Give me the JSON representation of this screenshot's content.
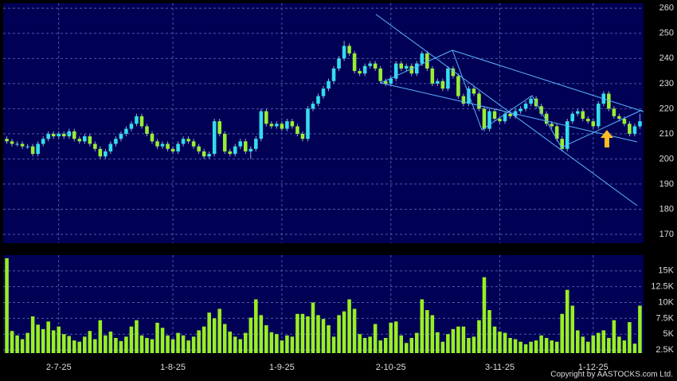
{
  "chart_data": [
    {
      "type": "candlestick",
      "xlim": [
        -0.7,
        122.7
      ],
      "xticks": [
        {
          "value": 10,
          "label": "2-7-25"
        },
        {
          "value": 32,
          "label": "1-8-25"
        },
        {
          "value": 53,
          "label": "1-9-25"
        },
        {
          "value": 74,
          "label": "2-10-25"
        },
        {
          "value": 95,
          "label": "3-11-25"
        },
        {
          "value": 113,
          "label": "1-12-25"
        }
      ],
      "ylim": [
        166.5,
        262
      ],
      "yticks": [
        170,
        180,
        190,
        200,
        210,
        220,
        230,
        240,
        250,
        260
      ],
      "grid": true,
      "up_color": "#33ddee",
      "down_color": "#99ee33",
      "candles": [
        [
          208,
          209,
          206,
          207
        ],
        [
          207,
          208,
          205,
          206
        ],
        [
          206,
          207,
          205,
          206
        ],
        [
          206,
          207,
          204,
          205
        ],
        [
          205,
          206,
          204,
          205
        ],
        [
          205,
          206,
          201,
          202
        ],
        [
          202,
          207,
          201,
          206
        ],
        [
          206,
          209,
          205,
          208
        ],
        [
          208,
          211,
          207,
          210
        ],
        [
          210,
          211,
          208,
          209
        ],
        [
          209,
          211,
          208,
          210
        ],
        [
          210,
          211,
          208,
          209
        ],
        [
          209,
          212,
          208,
          211
        ],
        [
          211,
          212,
          207,
          208
        ],
        [
          208,
          209,
          206,
          207
        ],
        [
          207,
          210,
          206,
          209
        ],
        [
          209,
          210,
          205,
          206
        ],
        [
          206,
          207,
          203,
          204
        ],
        [
          204,
          205,
          200,
          201
        ],
        [
          201,
          204,
          200,
          203
        ],
        [
          203,
          207,
          202,
          206
        ],
        [
          206,
          209,
          205,
          208
        ],
        [
          208,
          211,
          207,
          210
        ],
        [
          210,
          213,
          209,
          212
        ],
        [
          212,
          215,
          211,
          214
        ],
        [
          214,
          218,
          213,
          217
        ],
        [
          217,
          218,
          212,
          213
        ],
        [
          213,
          214,
          209,
          210
        ],
        [
          210,
          211,
          206,
          207
        ],
        [
          207,
          208,
          204,
          205
        ],
        [
          205,
          207,
          204,
          206
        ],
        [
          206,
          207,
          203,
          204
        ],
        [
          204,
          205,
          202,
          203
        ],
        [
          203,
          207,
          202,
          206
        ],
        [
          206,
          209,
          205,
          208
        ],
        [
          208,
          209,
          206,
          207
        ],
        [
          207,
          208,
          204,
          205
        ],
        [
          205,
          206,
          202,
          203
        ],
        [
          203,
          204,
          200,
          201
        ],
        [
          201,
          203,
          200,
          202
        ],
        [
          202,
          216,
          201,
          215
        ],
        [
          215,
          216,
          209,
          210
        ],
        [
          210,
          211,
          202,
          203
        ],
        [
          203,
          204,
          201,
          202
        ],
        [
          202,
          206,
          201,
          205
        ],
        [
          205,
          208,
          204,
          207
        ],
        [
          207,
          208,
          202,
          203
        ],
        [
          203,
          205,
          200,
          204
        ],
        [
          204,
          209,
          203,
          208
        ],
        [
          208,
          220,
          207,
          219
        ],
        [
          219,
          220,
          213,
          214
        ],
        [
          214,
          215,
          212,
          213
        ],
        [
          213,
          215,
          212,
          214
        ],
        [
          214,
          215,
          211,
          212
        ],
        [
          212,
          216,
          211,
          215
        ],
        [
          215,
          216,
          212,
          213
        ],
        [
          213,
          214,
          209,
          210
        ],
        [
          210,
          211,
          207,
          208
        ],
        [
          208,
          221,
          207,
          220
        ],
        [
          220,
          223,
          219,
          222
        ],
        [
          222,
          226,
          221,
          225
        ],
        [
          225,
          229,
          224,
          228
        ],
        [
          228,
          232,
          227,
          231
        ],
        [
          231,
          237,
          230,
          236
        ],
        [
          236,
          241,
          235,
          240
        ],
        [
          240,
          247,
          239,
          245
        ],
        [
          245,
          246,
          241,
          242
        ],
        [
          242,
          243,
          234,
          235
        ],
        [
          235,
          236,
          233,
          234
        ],
        [
          234,
          238,
          233,
          237
        ],
        [
          237,
          239,
          236,
          238
        ],
        [
          238,
          239,
          235,
          236
        ],
        [
          236,
          237,
          230,
          231
        ],
        [
          231,
          232,
          229,
          230
        ],
        [
          230,
          233,
          229,
          232
        ],
        [
          232,
          239,
          231,
          238
        ],
        [
          238,
          239,
          235,
          236
        ],
        [
          236,
          238,
          235,
          237
        ],
        [
          237,
          238,
          233,
          234
        ],
        [
          234,
          239,
          233,
          238
        ],
        [
          238,
          243,
          237,
          242
        ],
        [
          242,
          243,
          235,
          236
        ],
        [
          236,
          237,
          229,
          230
        ],
        [
          230,
          232,
          229,
          231
        ],
        [
          231,
          232,
          227,
          228
        ],
        [
          228,
          237,
          227,
          236
        ],
        [
          236,
          237,
          232,
          233
        ],
        [
          233,
          234,
          224,
          225
        ],
        [
          225,
          226,
          221,
          222
        ],
        [
          222,
          229,
          221,
          228
        ],
        [
          228,
          229,
          225,
          226
        ],
        [
          226,
          227,
          219,
          220
        ],
        [
          220,
          221,
          211,
          212
        ],
        [
          212,
          220,
          211,
          219
        ],
        [
          219,
          220,
          215,
          216
        ],
        [
          216,
          217,
          214,
          215
        ],
        [
          215,
          219,
          214,
          218
        ],
        [
          218,
          219,
          216,
          217
        ],
        [
          217,
          220,
          216,
          219
        ],
        [
          219,
          221,
          218,
          220
        ],
        [
          220,
          223,
          219,
          222
        ],
        [
          222,
          225,
          221,
          224
        ],
        [
          224,
          225,
          220,
          221
        ],
        [
          221,
          222,
          217,
          218
        ],
        [
          218,
          219,
          213,
          214
        ],
        [
          214,
          215,
          212,
          213
        ],
        [
          213,
          214,
          207,
          208
        ],
        [
          208,
          209,
          203,
          204
        ],
        [
          204,
          216,
          203,
          215
        ],
        [
          215,
          219,
          214,
          218
        ],
        [
          218,
          220,
          217,
          219
        ],
        [
          219,
          220,
          215,
          216
        ],
        [
          216,
          217,
          214,
          215
        ],
        [
          215,
          216,
          212,
          213
        ],
        [
          213,
          223,
          212,
          222
        ],
        [
          222,
          227,
          221,
          226
        ],
        [
          226,
          227,
          219,
          220
        ],
        [
          220,
          221,
          216,
          217
        ],
        [
          217,
          218,
          215,
          216
        ],
        [
          216,
          217,
          213,
          214
        ],
        [
          214,
          215,
          209,
          210
        ],
        [
          210,
          214,
          209,
          213
        ],
        [
          213,
          218,
          212,
          215
        ]
      ]
    },
    {
      "type": "bar",
      "color": "#99ee22",
      "ylim": [
        2000,
        17500
      ],
      "yticks": [
        {
          "value": 2500,
          "label": "2.5K"
        },
        {
          "value": 5000,
          "label": "5K"
        },
        {
          "value": 7500,
          "label": "7.5K"
        },
        {
          "value": 10000,
          "label": "10K"
        },
        {
          "value": 12500,
          "label": "12.5K"
        },
        {
          "value": 15000,
          "label": "15K"
        }
      ],
      "grid": true,
      "values": [
        17000,
        5500,
        4800,
        4200,
        5200,
        7800,
        6500,
        5800,
        7000,
        5600,
        6200,
        5000,
        4700,
        4000,
        3800,
        4600,
        5500,
        4200,
        7200,
        4800,
        5400,
        4400,
        3900,
        4600,
        6200,
        7200,
        4800,
        4400,
        4200,
        6800,
        6000,
        4800,
        4200,
        5200,
        4800,
        4000,
        4600,
        5600,
        6200,
        8400,
        7500,
        9000,
        6600,
        5400,
        4600,
        4200,
        5200,
        7600,
        10500,
        8000,
        6400,
        5300,
        5000,
        4000,
        4800,
        4600,
        8200,
        8200,
        7800,
        10000,
        8000,
        7400,
        6400,
        4600,
        8000,
        8600,
        10500,
        9000,
        5000,
        4400,
        4600,
        6600,
        4000,
        4400,
        6800,
        7000,
        4800,
        3600,
        4400,
        5200,
        10500,
        8800,
        8000,
        5300,
        3800,
        5000,
        5800,
        6200,
        6200,
        4400,
        4600,
        7200,
        14000,
        8800,
        6200,
        5400,
        5200,
        4400,
        4200,
        3800,
        3400,
        3800,
        4000,
        4800,
        4400,
        4000,
        3800,
        8200,
        12000,
        9500,
        5600,
        4600,
        3800,
        4800,
        5200,
        5600,
        4400,
        7200,
        4600,
        4000,
        6900,
        3500,
        9500
      ]
    }
  ],
  "copyright": "Copyright by AASTOCKS.com Ltd."
}
